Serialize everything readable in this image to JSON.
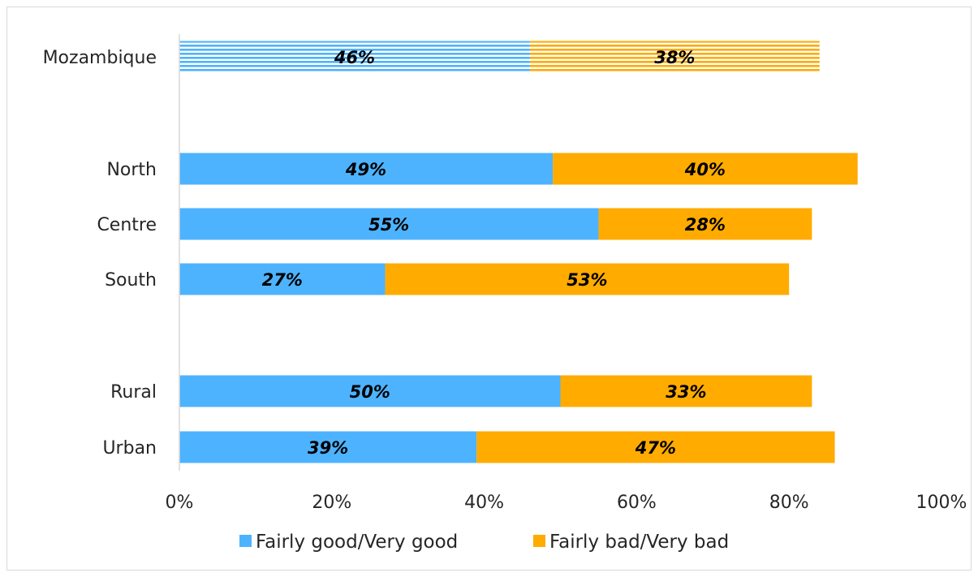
{
  "chart_data": {
    "type": "bar",
    "orientation": "horizontal",
    "stacked": true,
    "categories": [
      "Mozambique",
      "North",
      "Centre",
      "South",
      "Rural",
      "Urban"
    ],
    "series": [
      {
        "name": "Fairly good/Very good",
        "values": [
          46,
          49,
          55,
          27,
          50,
          39
        ],
        "labels": [
          "46%",
          "49%",
          "55%",
          "27%",
          "50%",
          "39%"
        ]
      },
      {
        "name": "Fairly bad/Very bad",
        "values": [
          38,
          40,
          28,
          53,
          33,
          47
        ],
        "labels": [
          "38%",
          "40%",
          "28%",
          "53%",
          "33%",
          "47%"
        ]
      }
    ],
    "colors": [
      "#4db3ff",
      "#ffab00"
    ],
    "hatched_category": "Mozambique",
    "xlim": [
      0,
      100
    ],
    "x_ticks": [
      "0%",
      "20%",
      "40%",
      "60%",
      "80%",
      "100%"
    ],
    "grid": false,
    "legend_position": "bottom"
  }
}
